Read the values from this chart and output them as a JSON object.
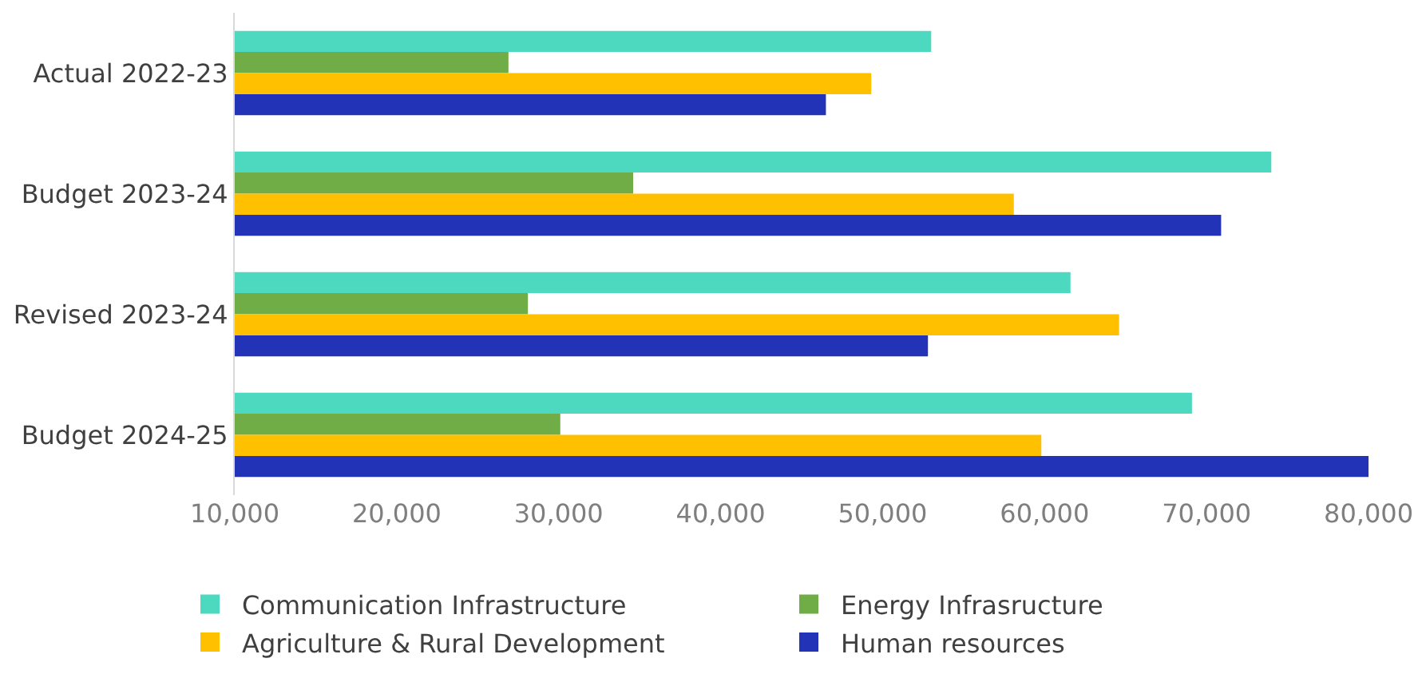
{
  "chart_data": {
    "type": "bar",
    "orientation": "horizontal",
    "categories": [
      "Actual 2022-23",
      "Budget 2023-24",
      "Revised 2023-24",
      "Budget 2024-25"
    ],
    "series": [
      {
        "name": "Communication Infrastructure",
        "color": "#4dd9c0",
        "values": [
          53000,
          74000,
          61600,
          69100
        ]
      },
      {
        "name": "Energy Infrasructure",
        "color": "#70ad47",
        "values": [
          26900,
          34600,
          28100,
          30100
        ]
      },
      {
        "name": "Agriculture & Rural Development",
        "color": "#ffc000",
        "values": [
          49300,
          58100,
          64600,
          59800
        ]
      },
      {
        "name": "Human resources",
        "color": "#2233b8",
        "values": [
          46500,
          70900,
          52800,
          80000
        ]
      }
    ],
    "xlim": [
      10000,
      80000
    ],
    "xticks": [
      {
        "value": 10000,
        "label": "10,000"
      },
      {
        "value": 20000,
        "label": "20,000"
      },
      {
        "value": 30000,
        "label": "30,000"
      },
      {
        "value": 40000,
        "label": "40,000"
      },
      {
        "value": 50000,
        "label": "50,000"
      },
      {
        "value": 60000,
        "label": "60,000"
      },
      {
        "value": 70000,
        "label": "70,000"
      },
      {
        "value": 80000,
        "label": "80,000"
      }
    ],
    "legend": "bottom"
  }
}
